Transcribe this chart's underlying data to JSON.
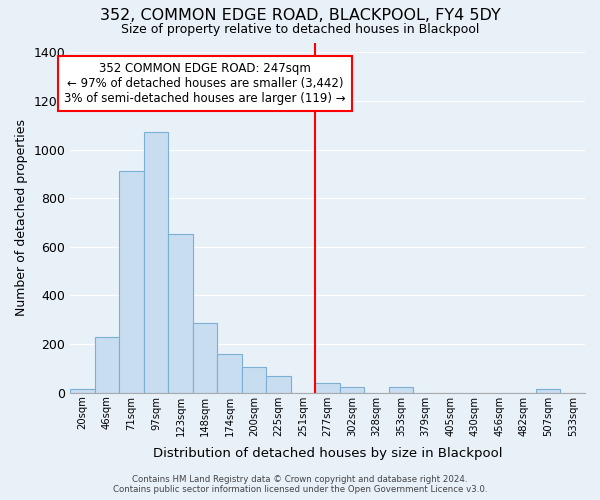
{
  "title": "352, COMMON EDGE ROAD, BLACKPOOL, FY4 5DY",
  "subtitle": "Size of property relative to detached houses in Blackpool",
  "xlabel": "Distribution of detached houses by size in Blackpool",
  "ylabel": "Number of detached properties",
  "bar_color": "#c9ddf0",
  "bar_edge_color": "#7bafd4",
  "bg_color": "#e8f0f8",
  "vline_x": 9.5,
  "vline_color": "red",
  "bin_labels": [
    "20sqm",
    "46sqm",
    "71sqm",
    "97sqm",
    "123sqm",
    "148sqm",
    "174sqm",
    "200sqm",
    "225sqm",
    "251sqm",
    "277sqm",
    "302sqm",
    "328sqm",
    "353sqm",
    "379sqm",
    "405sqm",
    "430sqm",
    "456sqm",
    "482sqm",
    "507sqm",
    "533sqm"
  ],
  "bar_heights": [
    15,
    228,
    910,
    1070,
    652,
    287,
    158,
    105,
    70,
    0,
    38,
    22,
    0,
    22,
    0,
    0,
    0,
    0,
    0,
    15,
    0
  ],
  "ylim": [
    0,
    1440
  ],
  "yticks": [
    0,
    200,
    400,
    600,
    800,
    1000,
    1200,
    1400
  ],
  "annotation_title": "352 COMMON EDGE ROAD: 247sqm",
  "annotation_line1": "← 97% of detached houses are smaller (3,442)",
  "annotation_line2": "3% of semi-detached houses are larger (119) →",
  "footer1": "Contains HM Land Registry data © Crown copyright and database right 2024.",
  "footer2": "Contains public sector information licensed under the Open Government Licence v3.0."
}
